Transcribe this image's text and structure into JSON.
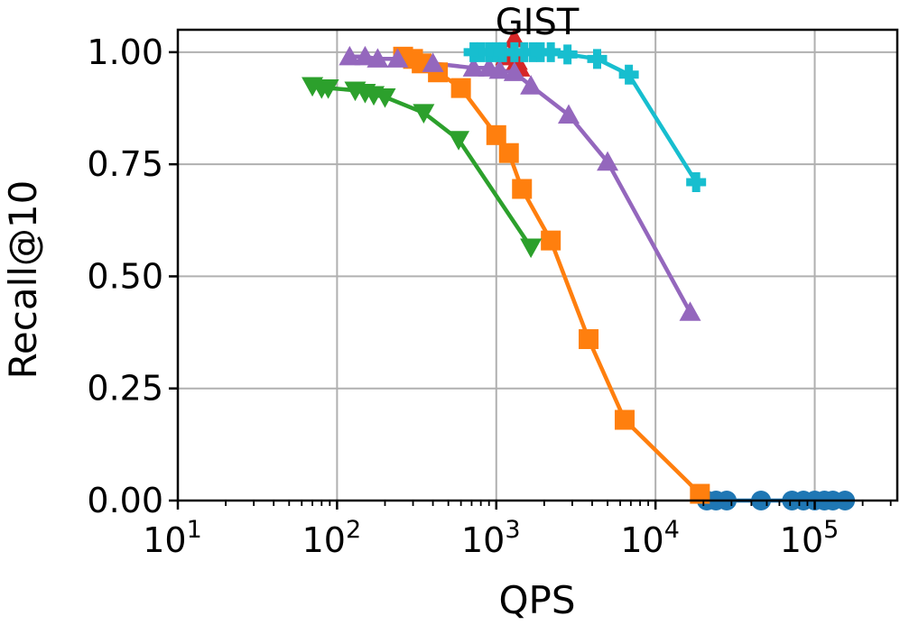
{
  "chart_data": {
    "type": "line",
    "title": "GIST",
    "xlabel": "QPS",
    "ylabel": "Recall@10",
    "xscale": "log",
    "xlim": [
      10,
      330000
    ],
    "ylim": [
      0,
      1.05
    ],
    "grid": true,
    "x_ticks": [
      {
        "value": 10,
        "base": "10",
        "exp": "1"
      },
      {
        "value": 100,
        "base": "10",
        "exp": "2"
      },
      {
        "value": 1000,
        "base": "10",
        "exp": "3"
      },
      {
        "value": 10000,
        "base": "10",
        "exp": "4"
      },
      {
        "value": 100000,
        "base": "10",
        "exp": "5"
      }
    ],
    "y_ticks": [
      {
        "value": 0.0,
        "label": "0.00"
      },
      {
        "value": 0.25,
        "label": "0.25"
      },
      {
        "value": 0.5,
        "label": "0.50"
      },
      {
        "value": 0.75,
        "label": "0.75"
      },
      {
        "value": 1.0,
        "label": "1.00"
      }
    ],
    "series": [
      {
        "name": "blue-circle",
        "color": "#1f77b4",
        "marker": "circle",
        "x": [
          21000,
          24000,
          28000,
          46000,
          72000,
          85000,
          100000,
          115000,
          130000,
          155000
        ],
        "y": [
          0.0,
          0.0,
          0.0,
          0.0,
          0.0,
          0.0,
          0.0,
          0.0,
          0.0,
          0.0
        ]
      },
      {
        "name": "orange-square",
        "color": "#ff7f0e",
        "marker": "square",
        "x": [
          260,
          300,
          340,
          430,
          600,
          1000,
          1200,
          1450,
          2200,
          3800,
          6400,
          19000
        ],
        "y": [
          0.99,
          0.985,
          0.975,
          0.955,
          0.92,
          0.815,
          0.775,
          0.695,
          0.58,
          0.36,
          0.18,
          0.015
        ]
      },
      {
        "name": "green-triangle-down",
        "color": "#2ca02c",
        "marker": "triangle-down",
        "x": [
          70,
          80,
          88,
          130,
          150,
          170,
          200,
          350,
          580,
          1650
        ],
        "y": [
          0.925,
          0.92,
          0.92,
          0.915,
          0.91,
          0.905,
          0.9,
          0.865,
          0.805,
          0.565
        ]
      },
      {
        "name": "red-triangle-up",
        "color": "#d62728",
        "marker": "triangle-up",
        "x": [
          1150,
          1250,
          1300,
          1350,
          1400
        ],
        "y": [
          0.99,
          1.0,
          1.03,
          0.98,
          0.965
        ]
      },
      {
        "name": "purple-triangle-up",
        "color": "#9467bd",
        "marker": "triangle-up",
        "x": [
          120,
          150,
          180,
          240,
          400,
          720,
          900,
          1050,
          1300,
          1650,
          2850,
          5000,
          16500
        ],
        "y": [
          0.99,
          0.99,
          0.985,
          0.985,
          0.975,
          0.965,
          0.965,
          0.96,
          0.955,
          0.925,
          0.86,
          0.755,
          0.42
        ]
      },
      {
        "name": "cyan-plus",
        "color": "#17becf",
        "marker": "plus",
        "x": [
          720,
          800,
          900,
          1000,
          1100,
          1300,
          1500,
          1700,
          1900,
          2200,
          2800,
          4300,
          6800,
          18000
        ],
        "y": [
          1.0,
          1.0,
          1.0,
          1.0,
          1.0,
          1.0,
          1.0,
          1.0,
          1.0,
          1.0,
          0.995,
          0.985,
          0.95,
          0.71
        ]
      }
    ]
  }
}
